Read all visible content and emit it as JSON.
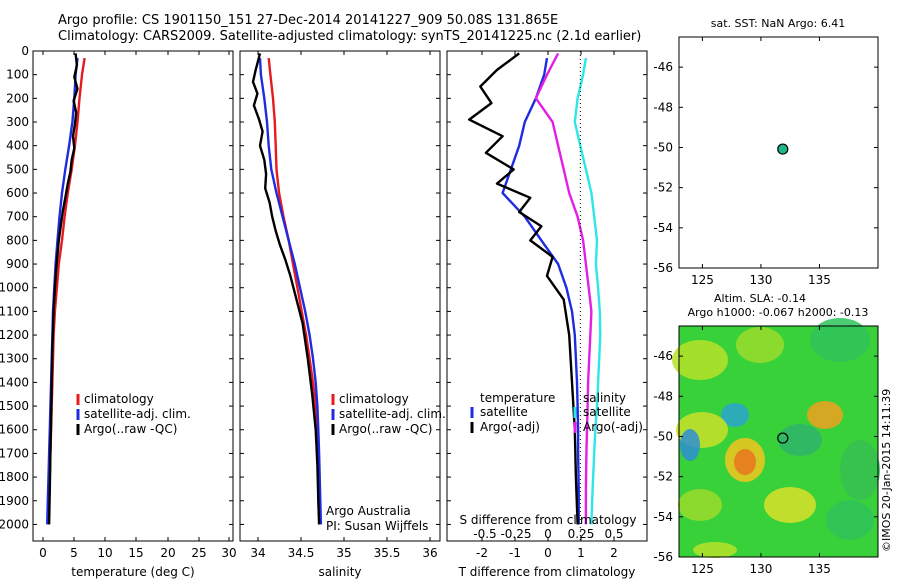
{
  "header": {
    "line1": "Argo profile: CS 1901150_151 27-Dec-2014 20141227_909 50.08S 131.865E",
    "line2": "Climatology: CARS2009. Satellite-adjusted climatology: synTS_20141225.nc (2.1d earlier)"
  },
  "stamp": "©IMOS 20-Jan-2015 14:11:39",
  "colors": {
    "climatology": "#e8191f",
    "satellite": "#1f2be0",
    "argo": "#000000",
    "salinity_sat": "#2de6ea",
    "salinity_argo": "#e41fe4",
    "marker": "#1fb58a"
  },
  "chart_data": [
    {
      "type": "line",
      "panel": "temperature",
      "xlabel": "temperature (deg C)",
      "ylabel": "",
      "xlim": [
        0,
        31
      ],
      "ylim": [
        2070,
        0
      ],
      "y_reversed": true,
      "xticks": [
        "0",
        "5",
        "10",
        "15",
        "20",
        "25",
        "30"
      ],
      "yticks": [
        "0",
        "100",
        "200",
        "300",
        "400",
        "500",
        "600",
        "700",
        "800",
        "900",
        "1000",
        "1100",
        "1200",
        "1300",
        "1400",
        "1500",
        "1600",
        "1700",
        "1800",
        "1900",
        "2000"
      ],
      "legend": [
        "climatology",
        "satellite-adj. clim.",
        "Argo(..raw -QC)"
      ],
      "series": [
        {
          "name": "climatology",
          "color": "#e8191f",
          "x": [
            8.0,
            7.6,
            7.2,
            6.9,
            6.5,
            6.0,
            5.4,
            4.9,
            4.5,
            4.0,
            3.7,
            3.4,
            3.2,
            3.1,
            3.0,
            2.9,
            2.8,
            2.7,
            2.6,
            2.5,
            2.4
          ],
          "y": [
            30,
            100,
            200,
            300,
            400,
            500,
            600,
            700,
            800,
            900,
            1000,
            1100,
            1200,
            1300,
            1400,
            1500,
            1600,
            1700,
            1800,
            1900,
            2000
          ]
        },
        {
          "name": "satellite-adj. clim.",
          "color": "#1f2be0",
          "x": [
            6.9,
            6.6,
            6.4,
            6.1,
            5.6,
            5.0,
            4.5,
            4.1,
            3.8,
            3.5,
            3.3,
            3.1,
            3.0,
            2.9,
            2.8,
            2.7,
            2.6,
            2.5,
            2.4,
            2.3,
            2.2
          ],
          "y": [
            30,
            100,
            200,
            300,
            400,
            500,
            600,
            700,
            800,
            900,
            1000,
            1100,
            1200,
            1300,
            1400,
            1500,
            1600,
            1700,
            1800,
            1900,
            2000
          ]
        },
        {
          "name": "Argo(..raw -QC)",
          "color": "#000000",
          "x": [
            6.6,
            6.8,
            6.4,
            6.9,
            6.3,
            6.7,
            6.5,
            6.2,
            6.4,
            6.0,
            5.8,
            5.4,
            5.0,
            4.6,
            4.3,
            4.0,
            3.8,
            3.6,
            3.4,
            3.2,
            3.0,
            2.9,
            2.8,
            2.7,
            2.6,
            2.5
          ],
          "y": [
            10,
            60,
            110,
            160,
            210,
            260,
            310,
            360,
            410,
            460,
            510,
            560,
            620,
            680,
            740,
            800,
            860,
            920,
            1000,
            1100,
            1250,
            1400,
            1550,
            1700,
            1850,
            2000
          ]
        }
      ]
    },
    {
      "type": "line",
      "panel": "salinity",
      "xlabel": "salinity",
      "xlim": [
        33.8,
        36.1
      ],
      "ylim": [
        2070,
        0
      ],
      "y_reversed": true,
      "xticks": [
        "34",
        "34.5",
        "35",
        "35.5",
        "36"
      ],
      "legend": [
        "climatology",
        "satellite-adj. clim.",
        "Argo(..raw -QC)"
      ],
      "annotation": [
        "Argo Australia",
        "PI: Susan Wijffels"
      ],
      "series": [
        {
          "name": "climatology",
          "color": "#e8191f",
          "x": [
            34.13,
            34.15,
            34.18,
            34.2,
            34.21,
            34.22,
            34.25,
            34.3,
            34.36,
            34.41,
            34.46,
            34.51,
            34.56,
            34.6,
            34.64,
            34.67,
            34.69,
            34.7,
            34.71,
            34.72
          ],
          "y": [
            30,
            100,
            200,
            300,
            400,
            500,
            600,
            700,
            800,
            900,
            1000,
            1100,
            1200,
            1300,
            1400,
            1500,
            1600,
            1700,
            1850,
            2000
          ]
        },
        {
          "name": "satellite-adj. clim.",
          "color": "#1f2be0",
          "x": [
            34.03,
            34.04,
            34.08,
            34.11,
            34.13,
            34.16,
            34.22,
            34.29,
            34.36,
            34.43,
            34.49,
            34.55,
            34.6,
            34.64,
            34.67,
            34.69,
            34.7,
            34.71,
            34.72,
            34.73
          ],
          "y": [
            30,
            100,
            200,
            300,
            400,
            500,
            600,
            700,
            800,
            900,
            1000,
            1100,
            1200,
            1300,
            1400,
            1500,
            1600,
            1700,
            1850,
            2000
          ]
        },
        {
          "name": "Argo(..raw -QC)",
          "color": "#000000",
          "x": [
            34.03,
            33.98,
            33.95,
            34.0,
            33.96,
            34.02,
            34.06,
            34.03,
            34.08,
            34.1,
            34.09,
            34.14,
            34.17,
            34.21,
            34.26,
            34.32,
            34.38,
            34.45,
            34.52,
            34.58,
            34.63,
            34.67,
            34.69,
            34.7,
            34.71
          ],
          "y": [
            10,
            80,
            130,
            180,
            230,
            290,
            340,
            400,
            460,
            520,
            580,
            640,
            700,
            760,
            820,
            880,
            950,
            1050,
            1150,
            1300,
            1450,
            1600,
            1750,
            1900,
            2000
          ]
        }
      ]
    },
    {
      "type": "line",
      "panel": "difference",
      "xlabel": "T difference from climatology",
      "xlabel_top": "S difference from climatology",
      "xlim": [
        -2.4,
        1.2
      ],
      "ylim": [
        2070,
        0
      ],
      "y_reversed": true,
      "xticks": [
        "-2",
        "-1",
        "0",
        "1",
        "2"
      ],
      "xticks_S": [
        "-0.5",
        "-0.25",
        "0",
        "0.25",
        "0.5"
      ],
      "legend_temperature_title": "temperature",
      "legend_salinity_title": "salinity",
      "legend": [
        "satellite",
        "Argo(-adj)",
        "satellite",
        "Argo(-adj)"
      ],
      "series": [
        {
          "name": "satellite",
          "color": "#1f2be0",
          "x": [
            -0.6,
            -0.65,
            -0.8,
            -1.0,
            -1.1,
            -1.25,
            -1.4,
            -1.0,
            -0.7,
            -0.4,
            -0.25,
            -0.15,
            -0.1,
            -0.08,
            -0.06,
            -0.05,
            -0.04,
            -0.04,
            -0.03,
            -0.03
          ],
          "y": [
            30,
            100,
            200,
            300,
            400,
            500,
            600,
            700,
            800,
            900,
            1000,
            1100,
            1200,
            1300,
            1400,
            1500,
            1600,
            1700,
            1850,
            2000
          ]
        },
        {
          "name": "Argo(-adj)",
          "color": "#000000",
          "x": [
            -1.1,
            -1.5,
            -1.8,
            -1.6,
            -2.0,
            -1.4,
            -1.7,
            -1.2,
            -1.5,
            -0.9,
            -1.1,
            -0.7,
            -0.9,
            -0.5,
            -0.6,
            -0.3,
            -0.2,
            -0.15,
            -0.1,
            -0.08,
            -0.05
          ],
          "y": [
            10,
            80,
            150,
            220,
            290,
            360,
            430,
            500,
            560,
            620,
            680,
            740,
            800,
            870,
            950,
            1050,
            1200,
            1400,
            1600,
            1800,
            2000
          ]
        },
        {
          "name": "satellite",
          "color": "#2de6ea",
          "x": [
            0.1,
            0.05,
            -0.05,
            -0.1,
            0.0,
            0.1,
            0.2,
            0.25,
            0.3,
            0.28,
            0.32,
            0.35,
            0.36,
            0.34,
            0.32,
            0.3,
            0.27,
            0.25,
            0.22,
            0.2
          ],
          "y": [
            30,
            100,
            200,
            300,
            400,
            500,
            600,
            700,
            800,
            900,
            1000,
            1100,
            1200,
            1300,
            1400,
            1500,
            1600,
            1700,
            1850,
            2000
          ]
        },
        {
          "name": "Argo(-adj)",
          "color": "#e41fe4",
          "x": [
            -0.4,
            -0.6,
            -0.8,
            -0.5,
            -0.4,
            -0.3,
            -0.2,
            -0.05,
            0.05,
            0.1,
            0.15,
            0.2,
            0.18,
            0.16,
            0.14,
            0.13,
            0.12,
            0.11,
            0.1,
            0.1
          ],
          "y": [
            10,
            100,
            200,
            300,
            400,
            500,
            600,
            700,
            800,
            900,
            1000,
            1100,
            1200,
            1300,
            1400,
            1500,
            1600,
            1700,
            1850,
            2000
          ]
        }
      ]
    },
    {
      "type": "scatter",
      "panel": "sst_map",
      "title": "sat. SST: NaN Argo: 6.41",
      "xlim": [
        123,
        140
      ],
      "ylim": [
        -56,
        -44.5
      ],
      "xticks": [
        "125",
        "130",
        "135"
      ],
      "yticks": [
        "-46",
        "-48",
        "-50",
        "-52",
        "-54",
        "-56"
      ],
      "points": [
        {
          "x": 131.865,
          "y": -50.08
        }
      ]
    },
    {
      "type": "heatmap",
      "panel": "sla_map",
      "title_line1": "Altim. SLA: -0.14",
      "title_line2": "Argo h1000: -0.067 h2000: -0.13",
      "xlim": [
        123,
        140
      ],
      "ylim": [
        -56,
        -44.5
      ],
      "xticks": [
        "125",
        "130",
        "135"
      ],
      "yticks": [
        "-46",
        "-48",
        "-50",
        "-52",
        "-54",
        "-56"
      ],
      "points": [
        {
          "x": 131.865,
          "y": -50.08
        }
      ]
    }
  ]
}
